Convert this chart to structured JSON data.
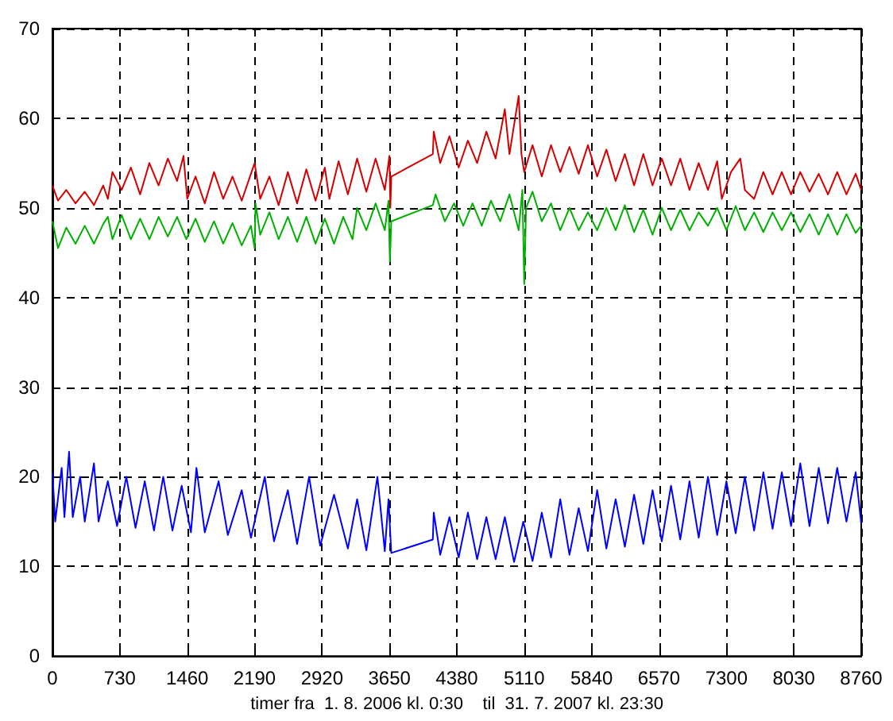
{
  "chart_data": {
    "type": "line",
    "xlabel": "timer fra  1. 8. 2006 kl. 0:30    til  31. 7. 2007 kl. 23:30",
    "xlim": [
      0,
      8760
    ],
    "xticks": [
      0,
      730,
      1460,
      2190,
      2920,
      3650,
      4380,
      5110,
      5840,
      6570,
      7300,
      8030,
      8760
    ],
    "ylim": [
      0,
      70
    ],
    "yticks": [
      0,
      10,
      20,
      30,
      40,
      50,
      60,
      70
    ],
    "grid": true,
    "marker": "none",
    "line_style": "solid",
    "series": [
      {
        "color": "#d40000",
        "x": [
          0,
          60,
          150,
          250,
          350,
          450,
          550,
          600,
          650,
          750,
          850,
          950,
          1050,
          1150,
          1250,
          1350,
          1420,
          1460,
          1550,
          1650,
          1750,
          1850,
          1950,
          2050,
          2150,
          2190,
          2250,
          2350,
          2450,
          2550,
          2650,
          2750,
          2850,
          2950,
          3000,
          3100,
          3200,
          3300,
          3400,
          3500,
          3600,
          3650,
          3660,
          3670,
          4120,
          4130,
          4200,
          4300,
          4400,
          4500,
          4600,
          4700,
          4800,
          4900,
          4950,
          5050,
          5080,
          5110,
          5200,
          5300,
          5400,
          5500,
          5600,
          5700,
          5800,
          5900,
          6000,
          6100,
          6200,
          6300,
          6400,
          6500,
          6600,
          6700,
          6800,
          6900,
          7000,
          7100,
          7200,
          7250,
          7350,
          7450,
          7500,
          7600,
          7700,
          7800,
          7900,
          8000,
          8100,
          8200,
          8300,
          8400,
          8500,
          8600,
          8700,
          8760
        ],
        "values": [
          52.5,
          50.8,
          52,
          50.5,
          51.8,
          50.3,
          52.5,
          51,
          54,
          52,
          54.5,
          51.5,
          55,
          52.5,
          55.5,
          53,
          55.8,
          51,
          53.5,
          50.5,
          54,
          51,
          53.5,
          50.8,
          53.8,
          55,
          51,
          53.5,
          50.3,
          54,
          50.5,
          54.3,
          50.8,
          54.5,
          51,
          55.2,
          51.5,
          55.5,
          51.8,
          55.5,
          52,
          55.8,
          50,
          53.5,
          56,
          58.5,
          55,
          58,
          54.5,
          57.5,
          55,
          58.5,
          55.5,
          61,
          56,
          62.5,
          56,
          54,
          57,
          53.5,
          57,
          54,
          56.8,
          53.8,
          57,
          53.5,
          56.5,
          53,
          56,
          52.5,
          56,
          52.5,
          55.5,
          52.5,
          55.5,
          52,
          55,
          52,
          55.2,
          51,
          54,
          55.5,
          52,
          51,
          54,
          51.5,
          54,
          51.5,
          54,
          51.8,
          53.8,
          51.5,
          54,
          51.5,
          53.8,
          52
        ]
      },
      {
        "color": "#00b000",
        "x": [
          0,
          60,
          150,
          250,
          350,
          450,
          550,
          600,
          650,
          750,
          850,
          950,
          1050,
          1150,
          1250,
          1350,
          1450,
          1550,
          1650,
          1750,
          1850,
          1950,
          2050,
          2150,
          2190,
          2200,
          2250,
          2350,
          2450,
          2550,
          2650,
          2750,
          2850,
          2950,
          3050,
          3150,
          3250,
          3300,
          3400,
          3500,
          3600,
          3640,
          3655,
          3670,
          4120,
          4150,
          4250,
          4350,
          4450,
          4550,
          4650,
          4750,
          4850,
          4950,
          5050,
          5090,
          5110,
          5130,
          5200,
          5300,
          5400,
          5500,
          5600,
          5700,
          5800,
          5900,
          6000,
          6100,
          6200,
          6300,
          6400,
          6500,
          6600,
          6700,
          6800,
          6900,
          7000,
          7100,
          7200,
          7300,
          7400,
          7500,
          7600,
          7700,
          7800,
          7900,
          8000,
          8100,
          8200,
          8300,
          8400,
          8500,
          8600,
          8700,
          8760
        ],
        "values": [
          48.5,
          45.5,
          47.8,
          46,
          48,
          46,
          48.2,
          49,
          46.5,
          49.2,
          46.5,
          48.8,
          46.5,
          49,
          46.8,
          49,
          46.5,
          48.8,
          46.2,
          48.5,
          46,
          48.3,
          45.8,
          48,
          45.5,
          50.5,
          47,
          49.5,
          46.5,
          49,
          46.2,
          49,
          46,
          48.8,
          46,
          49,
          46.5,
          50,
          47.5,
          50.5,
          47.5,
          50.8,
          44,
          48.5,
          50.3,
          51.5,
          48.5,
          50.5,
          48,
          50.5,
          48,
          50.8,
          48.5,
          51.5,
          47.5,
          52,
          41.5,
          50,
          51.8,
          48.5,
          50.5,
          47.5,
          50,
          47.5,
          49.5,
          47.5,
          50,
          47.5,
          50.3,
          47.3,
          49.8,
          47,
          50,
          47.5,
          49.8,
          47.5,
          49.5,
          48,
          50,
          47.5,
          50.2,
          47.5,
          49.5,
          47.3,
          49.5,
          47.5,
          49.5,
          47.3,
          49.3,
          47,
          49.3,
          47,
          49.3,
          47.2,
          48
        ]
      },
      {
        "color": "#0000ff",
        "x": [
          0,
          30,
          100,
          130,
          180,
          220,
          300,
          350,
          450,
          500,
          600,
          700,
          800,
          900,
          1000,
          1100,
          1200,
          1300,
          1400,
          1500,
          1560,
          1650,
          1800,
          1900,
          2050,
          2150,
          2300,
          2400,
          2550,
          2650,
          2780,
          2900,
          3050,
          3200,
          3300,
          3400,
          3520,
          3600,
          3640,
          3670,
          4120,
          4130,
          4200,
          4300,
          4400,
          4500,
          4600,
          4700,
          4800,
          4900,
          5000,
          5100,
          5200,
          5300,
          5400,
          5500,
          5600,
          5700,
          5800,
          5900,
          6000,
          6100,
          6200,
          6300,
          6400,
          6500,
          6600,
          6700,
          6800,
          6900,
          7000,
          7100,
          7200,
          7300,
          7400,
          7500,
          7600,
          7700,
          7800,
          7900,
          8000,
          8100,
          8200,
          8300,
          8400,
          8500,
          8600,
          8700,
          8760
        ],
        "values": [
          20.5,
          15,
          21,
          15.5,
          22.8,
          15.5,
          20,
          15,
          21.5,
          15,
          19.5,
          14.5,
          20,
          14.3,
          19.5,
          14,
          20,
          14,
          19,
          13.8,
          21,
          13.8,
          19.5,
          13.5,
          18.5,
          13.2,
          20,
          12.8,
          18.5,
          12.5,
          20,
          12.3,
          18,
          12,
          17.5,
          11.8,
          20,
          11.7,
          17.5,
          11.5,
          13,
          16,
          11.3,
          15.5,
          11,
          16,
          10.8,
          15.5,
          10.8,
          15.5,
          10.5,
          15,
          10.6,
          16,
          11,
          17.5,
          11.3,
          16.5,
          11.7,
          18.5,
          12,
          17.5,
          12.2,
          18,
          12.5,
          18.5,
          12.8,
          19,
          13,
          19.5,
          13.2,
          20,
          13.5,
          19.5,
          13.7,
          20,
          14,
          20.5,
          14.2,
          20.5,
          14.5,
          21.5,
          14.5,
          21,
          14.8,
          21,
          15,
          20.5,
          14.8
        ]
      }
    ]
  }
}
